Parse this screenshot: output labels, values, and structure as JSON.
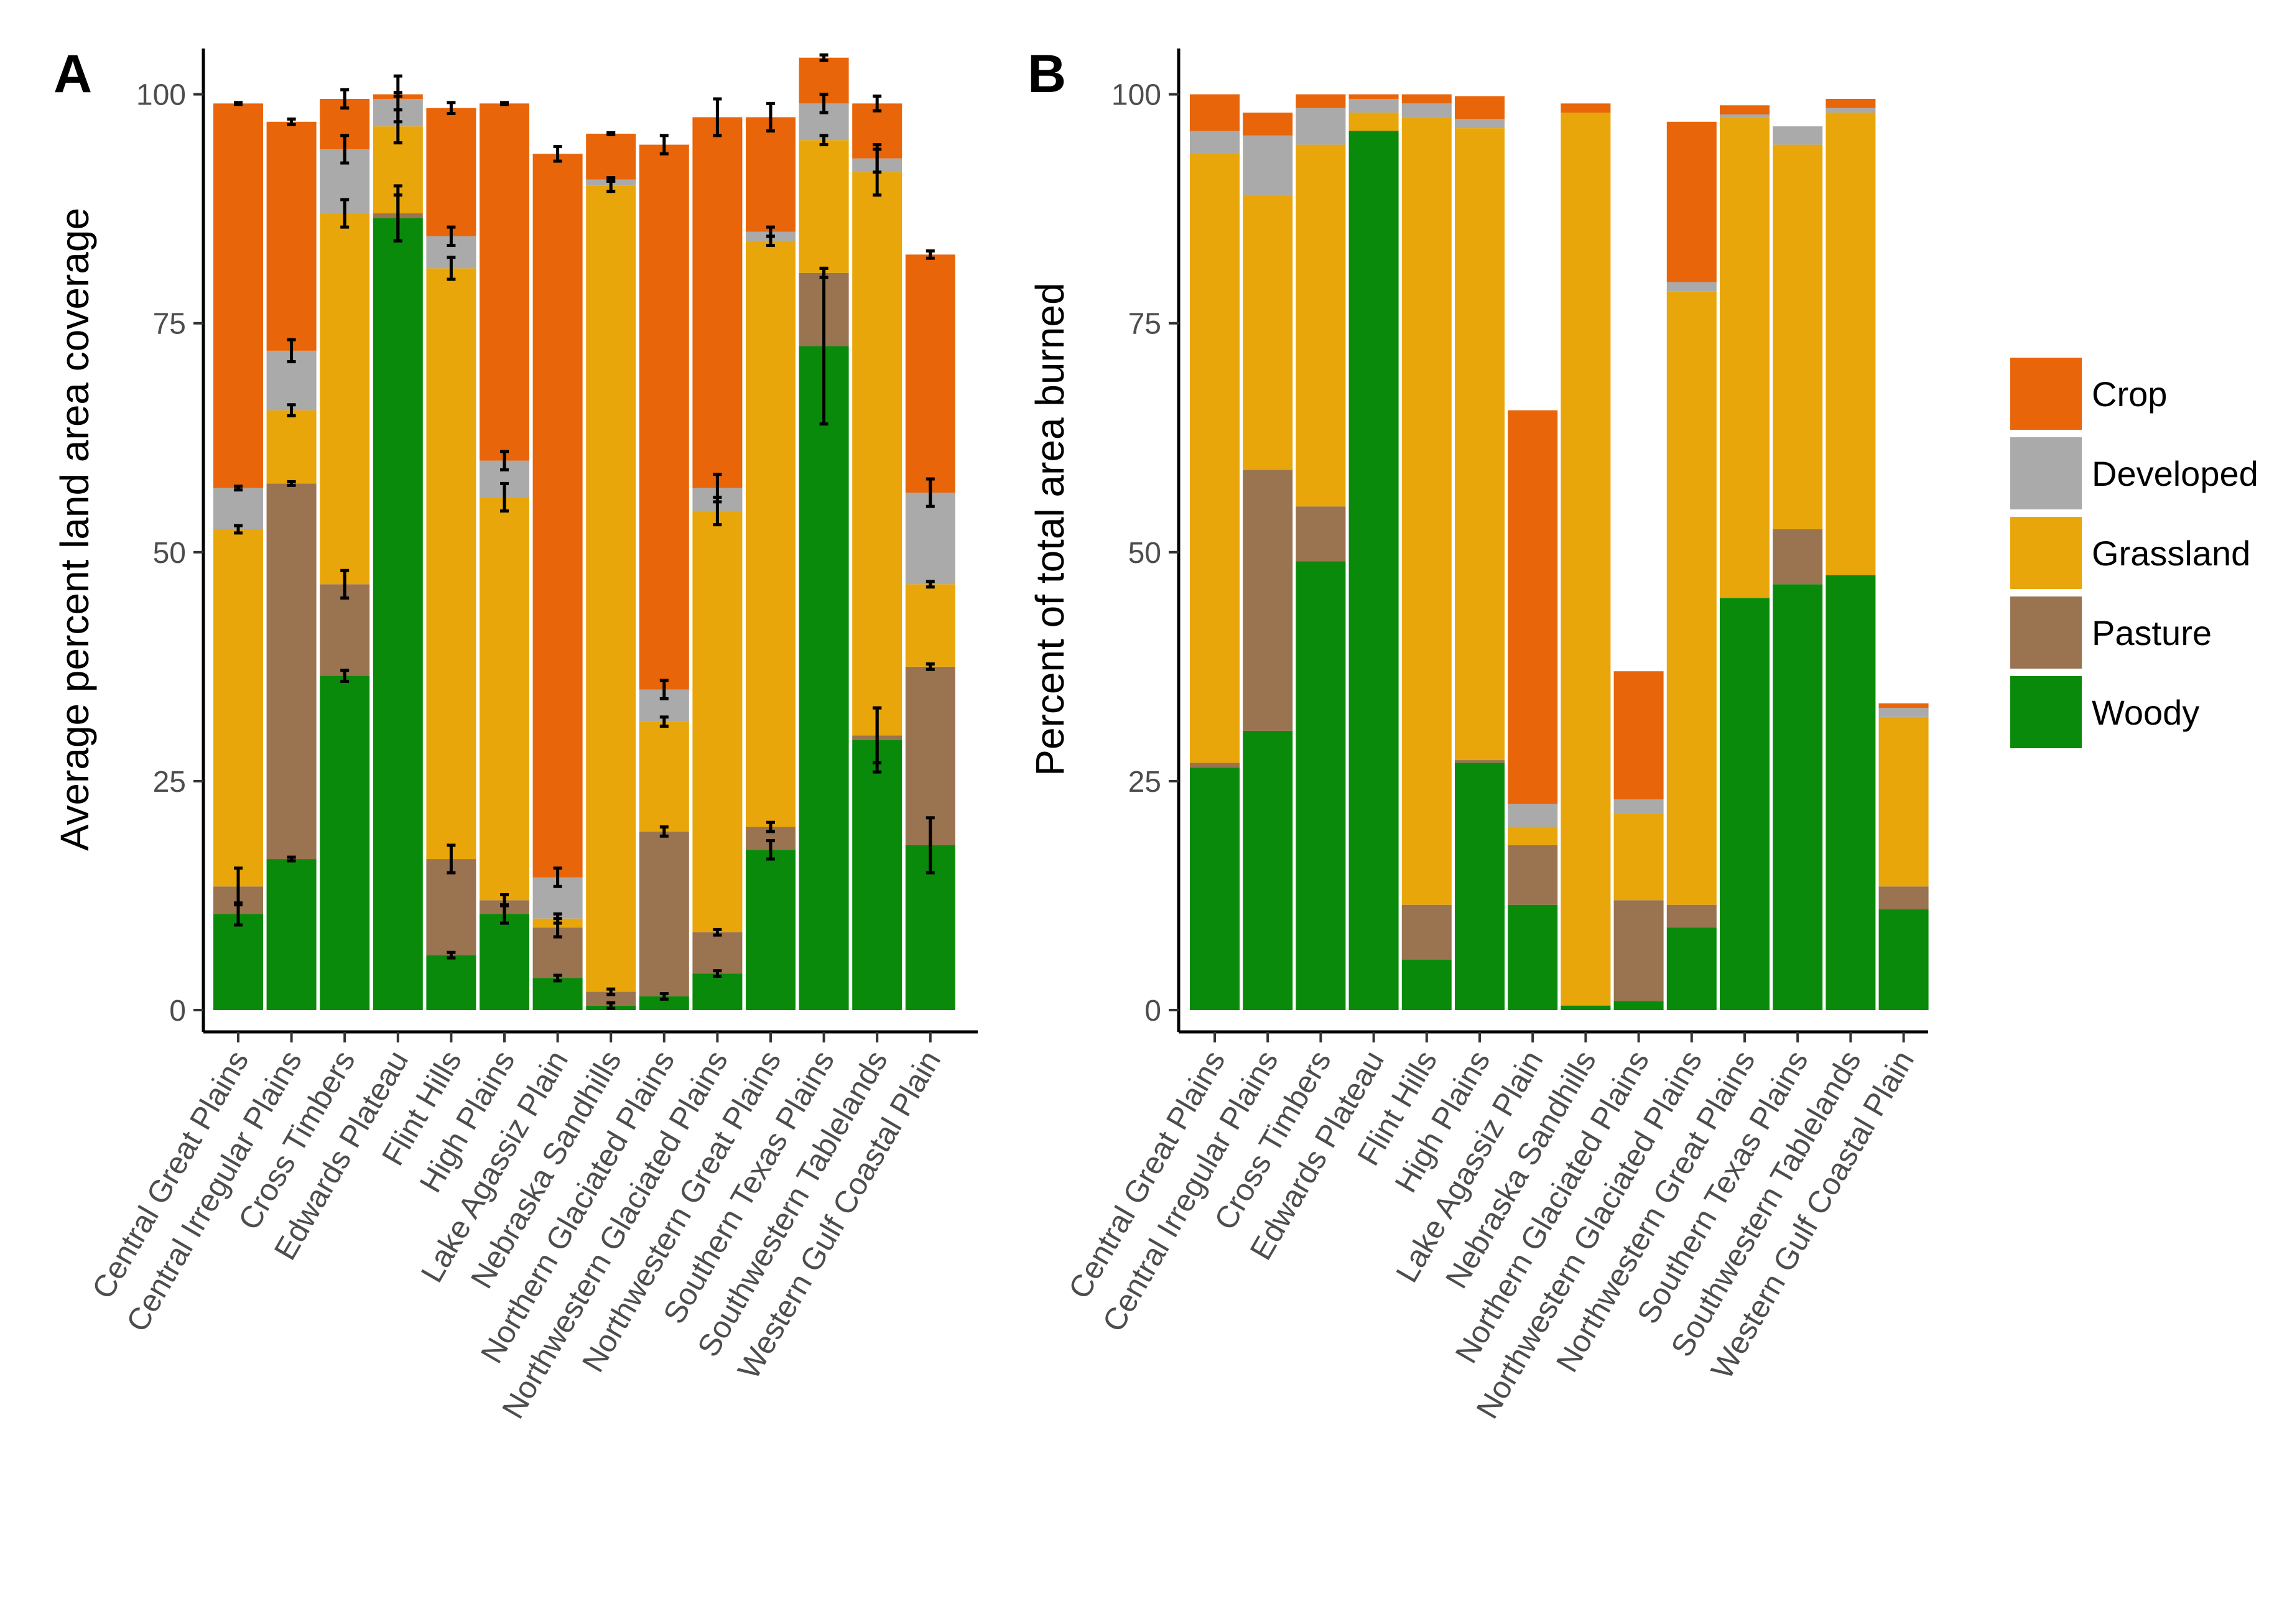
{
  "chart_data": {
    "type": "bar",
    "stacked": true,
    "legend": {
      "position": "right",
      "entries": [
        {
          "name": "Crop",
          "color": "#E8650A"
        },
        {
          "name": "Developed",
          "color": "#AAAAAA"
        },
        {
          "name": "Grassland",
          "color": "#E8A60A"
        },
        {
          "name": "Pasture",
          "color": "#9A7350"
        },
        {
          "name": "Woody",
          "color": "#0A8A0A"
        }
      ]
    },
    "categories": [
      "Central Great Plains",
      "Central Irregular Plains",
      "Cross Timbers",
      "Edwards Plateau",
      "Flint Hills",
      "High Plains",
      "Lake Agassiz Plain",
      "Nebraska Sandhills",
      "Northern Glaciated Plains",
      "Northwestern Glaciated Plains",
      "Northwestern Great Plains",
      "Southern Texas Plains",
      "Southwestern Tablelands",
      "Western Gulf Coastal Plain"
    ],
    "panels": [
      {
        "label": "A",
        "ylabel": "Average percent land area coverage",
        "ylim": [
          0,
          105
        ],
        "yticks": [
          "0",
          "25",
          "50",
          "75",
          "100"
        ],
        "error_bars": true,
        "series": [
          {
            "name": "Woody",
            "values": [
              10.5,
              16.5,
              36.5,
              86.5,
              6,
              10.5,
              3.5,
              0.5,
              1.5,
              4,
              17.5,
              72.5,
              29.5,
              18
            ],
            "errors": [
              1.2,
              0.2,
              0.6,
              2.5,
              0.3,
              1.0,
              0.3,
              0.3,
              0.3,
              0.3,
              1.0,
              8.5,
              3.5,
              3.0
            ]
          },
          {
            "name": "Pasture",
            "values": [
              3,
              41,
              10,
              0.5,
              10.5,
              1.5,
              5.5,
              1.5,
              18,
              4.5,
              2.5,
              8,
              0.5,
              19.5
            ],
            "errors": [
              2.0,
              0.2,
              1.5,
              3.0,
              1.5,
              0.6,
              1.0,
              0.3,
              0.5,
              0.3,
              0.5,
              0.5,
              3.0,
              0.3
            ]
          },
          {
            "name": "Grassland",
            "values": [
              39,
              8,
              40.5,
              9.5,
              64.5,
              44,
              1,
              88,
              12,
              46,
              64,
              14.5,
              61.5,
              9
            ],
            "errors": [
              0.4,
              0.6,
              1.5,
              1.8,
              1.2,
              1.5,
              0.5,
              0.6,
              0.5,
              1.5,
              0.5,
              0.5,
              2.5,
              0.3
            ]
          },
          {
            "name": "Developed",
            "values": [
              4.5,
              6.5,
              7,
              3,
              3.5,
              4,
              4.5,
              0.7,
              3.5,
              2.5,
              1,
              4,
              1.5,
              10
            ],
            "errors": [
              0.2,
              1.2,
              1.5,
              2.5,
              1.0,
              1.0,
              1.0,
              0.2,
              1.0,
              1.5,
              0.5,
              1.0,
              1.5,
              1.5
            ]
          },
          {
            "name": "Crop",
            "values": [
              42,
              25,
              5.5,
              0.5,
              14,
              39,
              79,
              5,
              59.5,
              40.5,
              12.5,
              5,
              6,
              26
            ],
            "errors": [
              0.1,
              0.3,
              1.0,
              0.2,
              0.6,
              0.1,
              0.8,
              0.1,
              1.0,
              2.0,
              1.5,
              0.3,
              0.8,
              0.4
            ]
          }
        ]
      },
      {
        "label": "B",
        "ylabel": "Percent of total area burned",
        "ylim": [
          0,
          105
        ],
        "yticks": [
          "0",
          "25",
          "50",
          "75",
          "100"
        ],
        "error_bars": false,
        "series": [
          {
            "name": "Woody",
            "values": [
              26.5,
              30.5,
              49,
              96,
              5.5,
              27,
              11.5,
              0.5,
              1,
              9,
              45,
              46.5,
              47.5,
              11
            ]
          },
          {
            "name": "Pasture",
            "values": [
              0.5,
              28.5,
              6,
              0,
              6,
              0.3,
              6.5,
              0,
              11,
              2.5,
              0,
              6,
              0,
              2.5
            ]
          },
          {
            "name": "Grassland",
            "values": [
              66.5,
              30,
              39.5,
              2,
              86,
              69,
              2,
              97.5,
              9.5,
              67,
              52.5,
              42,
              50.5,
              18.5
            ]
          },
          {
            "name": "Developed",
            "values": [
              2.5,
              6.5,
              4,
              1.5,
              1.5,
              1,
              2.5,
              0,
              1.5,
              1,
              0.3,
              2,
              0.5,
              1
            ]
          },
          {
            "name": "Crop",
            "values": [
              4,
              2.5,
              1.5,
              0.5,
              1,
              2.5,
              43,
              1,
              14,
              17.5,
              1,
              0,
              1,
              0.5
            ]
          }
        ]
      }
    ]
  }
}
